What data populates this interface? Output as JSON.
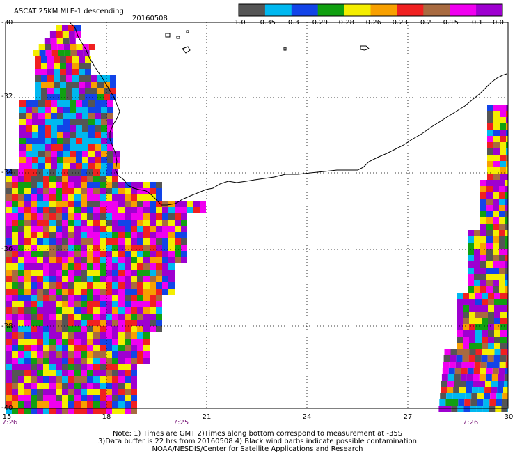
{
  "header": {
    "title": "ASCAT 25KM MLE-1 descending",
    "date": "20160508"
  },
  "colorbar": {
    "colors": [
      "#555555",
      "#00b8f0",
      "#1244e8",
      "#10a010",
      "#f4ee00",
      "#f8a000",
      "#f02020",
      "#a86a40",
      "#f000f0",
      "#9e00d0"
    ],
    "labels": [
      "-1.0",
      "-0.35",
      "-0.3",
      "-0.29",
      "-0.28",
      "-0.26",
      "-0.23",
      "-0.2",
      "-0.15",
      "-0.1",
      "0.0"
    ]
  },
  "axes": {
    "lat_ticks": [
      "-30",
      "-32",
      "-34",
      "-36",
      "-38",
      "-40"
    ],
    "lon_ticks": [
      "15",
      "18",
      "21",
      "24",
      "27",
      "30"
    ],
    "lat_range": [
      -40,
      -30
    ],
    "lon_range": [
      15,
      30
    ],
    "grid": true
  },
  "time_labels": [
    "7:26",
    "7:25",
    "7:26"
  ],
  "notes": [
    "Note: 1) Times are GMT 2)Times along bottom correspond to measurement at -35S",
    "3)Data buffer is 22 hrs from 20160508 4) Black wind barbs indicate possible contamination",
    "NOAA/NESDIS/Center for Satellite Applications and Research"
  ]
}
